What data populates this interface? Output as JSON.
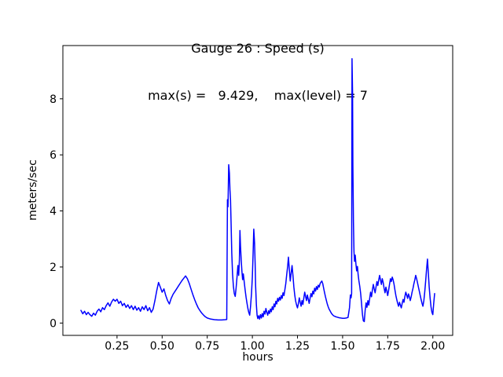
{
  "figure": {
    "background": "#ffffff",
    "frame_color": "#000000"
  },
  "chart_data": {
    "type": "line",
    "title": "Gauge 26 : Speed (s)",
    "subtitle": "max(s) =   9.429,    max(level) = 7",
    "xlabel": "hours",
    "ylabel": "meters/sec",
    "max_s": 9.429,
    "max_level": 7,
    "line_color": "#0000ff",
    "grid": false,
    "legend": "none",
    "xlim": [
      -0.05,
      2.11
    ],
    "ylim": [
      -0.44,
      9.9
    ],
    "xticks": [
      0.25,
      0.5,
      0.75,
      1.0,
      1.25,
      1.5,
      1.75,
      2.0
    ],
    "xtick_labels": [
      "0.25",
      "0.50",
      "0.75",
      "1.00",
      "1.25",
      "1.50",
      "1.75",
      "2.00"
    ],
    "yticks": [
      0,
      2,
      4,
      6,
      8
    ],
    "ytick_labels": [
      "0",
      "2",
      "4",
      "6",
      "8"
    ],
    "points": [
      [
        0.05,
        0.45
      ],
      [
        0.06,
        0.33
      ],
      [
        0.07,
        0.42
      ],
      [
        0.08,
        0.3
      ],
      [
        0.09,
        0.38
      ],
      [
        0.1,
        0.3
      ],
      [
        0.11,
        0.24
      ],
      [
        0.12,
        0.35
      ],
      [
        0.13,
        0.28
      ],
      [
        0.14,
        0.42
      ],
      [
        0.15,
        0.5
      ],
      [
        0.16,
        0.4
      ],
      [
        0.17,
        0.55
      ],
      [
        0.18,
        0.48
      ],
      [
        0.19,
        0.62
      ],
      [
        0.2,
        0.72
      ],
      [
        0.21,
        0.6
      ],
      [
        0.22,
        0.75
      ],
      [
        0.23,
        0.85
      ],
      [
        0.24,
        0.78
      ],
      [
        0.25,
        0.85
      ],
      [
        0.26,
        0.7
      ],
      [
        0.27,
        0.78
      ],
      [
        0.28,
        0.62
      ],
      [
        0.29,
        0.7
      ],
      [
        0.3,
        0.56
      ],
      [
        0.31,
        0.65
      ],
      [
        0.32,
        0.52
      ],
      [
        0.33,
        0.62
      ],
      [
        0.34,
        0.48
      ],
      [
        0.35,
        0.6
      ],
      [
        0.36,
        0.46
      ],
      [
        0.37,
        0.55
      ],
      [
        0.38,
        0.42
      ],
      [
        0.39,
        0.58
      ],
      [
        0.4,
        0.48
      ],
      [
        0.41,
        0.62
      ],
      [
        0.42,
        0.44
      ],
      [
        0.43,
        0.55
      ],
      [
        0.44,
        0.38
      ],
      [
        0.45,
        0.5
      ],
      [
        0.46,
        0.8
      ],
      [
        0.47,
        1.15
      ],
      [
        0.48,
        1.45
      ],
      [
        0.49,
        1.28
      ],
      [
        0.5,
        1.1
      ],
      [
        0.51,
        1.22
      ],
      [
        0.52,
        0.98
      ],
      [
        0.53,
        0.8
      ],
      [
        0.54,
        0.68
      ],
      [
        0.55,
        0.88
      ],
      [
        0.56,
        1.02
      ],
      [
        0.57,
        1.12
      ],
      [
        0.58,
        1.22
      ],
      [
        0.59,
        1.32
      ],
      [
        0.6,
        1.42
      ],
      [
        0.61,
        1.52
      ],
      [
        0.62,
        1.6
      ],
      [
        0.63,
        1.68
      ],
      [
        0.64,
        1.58
      ],
      [
        0.65,
        1.42
      ],
      [
        0.66,
        1.22
      ],
      [
        0.67,
        1.02
      ],
      [
        0.68,
        0.84
      ],
      [
        0.69,
        0.68
      ],
      [
        0.7,
        0.54
      ],
      [
        0.71,
        0.44
      ],
      [
        0.72,
        0.35
      ],
      [
        0.73,
        0.28
      ],
      [
        0.74,
        0.22
      ],
      [
        0.75,
        0.18
      ],
      [
        0.77,
        0.14
      ],
      [
        0.79,
        0.12
      ],
      [
        0.81,
        0.11
      ],
      [
        0.83,
        0.11
      ],
      [
        0.85,
        0.12
      ],
      [
        0.858,
        0.13
      ],
      [
        0.862,
        4.4
      ],
      [
        0.865,
        4.15
      ],
      [
        0.869,
        5.65
      ],
      [
        0.873,
        5.35
      ],
      [
        0.876,
        4.75
      ],
      [
        0.879,
        4.4
      ],
      [
        0.882,
        3.6
      ],
      [
        0.886,
        2.5
      ],
      [
        0.89,
        1.75
      ],
      [
        0.895,
        1.3
      ],
      [
        0.9,
        1.05
      ],
      [
        0.905,
        0.95
      ],
      [
        0.91,
        1.25
      ],
      [
        0.915,
        1.65
      ],
      [
        0.92,
        2.05
      ],
      [
        0.924,
        1.7
      ],
      [
        0.928,
        2.25
      ],
      [
        0.931,
        3.3
      ],
      [
        0.934,
        2.75
      ],
      [
        0.938,
        2.25
      ],
      [
        0.942,
        1.85
      ],
      [
        0.946,
        1.55
      ],
      [
        0.95,
        1.75
      ],
      [
        0.955,
        1.45
      ],
      [
        0.96,
        1.18
      ],
      [
        0.965,
        0.92
      ],
      [
        0.97,
        0.72
      ],
      [
        0.975,
        0.52
      ],
      [
        0.98,
        0.38
      ],
      [
        0.985,
        0.28
      ],
      [
        0.99,
        0.6
      ],
      [
        0.995,
        1.05
      ],
      [
        1.0,
        1.65
      ],
      [
        1.004,
        2.45
      ],
      [
        1.008,
        3.35
      ],
      [
        1.012,
        2.85
      ],
      [
        1.015,
        2.15
      ],
      [
        1.018,
        1.35
      ],
      [
        1.022,
        0.65
      ],
      [
        1.026,
        0.28
      ],
      [
        1.03,
        0.16
      ],
      [
        1.035,
        0.26
      ],
      [
        1.04,
        0.14
      ],
      [
        1.045,
        0.3
      ],
      [
        1.05,
        0.18
      ],
      [
        1.055,
        0.34
      ],
      [
        1.06,
        0.22
      ],
      [
        1.065,
        0.42
      ],
      [
        1.07,
        0.32
      ],
      [
        1.075,
        0.52
      ],
      [
        1.08,
        0.38
      ],
      [
        1.085,
        0.28
      ],
      [
        1.09,
        0.44
      ],
      [
        1.095,
        0.34
      ],
      [
        1.1,
        0.5
      ],
      [
        1.105,
        0.4
      ],
      [
        1.11,
        0.58
      ],
      [
        1.115,
        0.48
      ],
      [
        1.12,
        0.68
      ],
      [
        1.125,
        0.58
      ],
      [
        1.13,
        0.78
      ],
      [
        1.135,
        0.68
      ],
      [
        1.14,
        0.88
      ],
      [
        1.145,
        0.78
      ],
      [
        1.15,
        0.92
      ],
      [
        1.155,
        0.82
      ],
      [
        1.16,
        0.98
      ],
      [
        1.165,
        0.88
      ],
      [
        1.17,
        1.08
      ],
      [
        1.175,
        0.98
      ],
      [
        1.18,
        1.18
      ],
      [
        1.185,
        1.4
      ],
      [
        1.19,
        1.7
      ],
      [
        1.195,
        2.0
      ],
      [
        1.2,
        2.35
      ],
      [
        1.205,
        1.88
      ],
      [
        1.21,
        1.5
      ],
      [
        1.215,
        1.8
      ],
      [
        1.22,
        2.05
      ],
      [
        1.225,
        1.68
      ],
      [
        1.23,
        1.28
      ],
      [
        1.235,
        0.98
      ],
      [
        1.24,
        0.78
      ],
      [
        1.245,
        0.64
      ],
      [
        1.25,
        0.54
      ],
      [
        1.255,
        0.7
      ],
      [
        1.26,
        0.9
      ],
      [
        1.265,
        0.74
      ],
      [
        1.27,
        0.6
      ],
      [
        1.275,
        0.8
      ],
      [
        1.28,
        0.66
      ],
      [
        1.285,
        0.9
      ],
      [
        1.29,
        1.1
      ],
      [
        1.295,
        0.94
      ],
      [
        1.3,
        0.8
      ],
      [
        1.305,
        1.0
      ],
      [
        1.31,
        0.84
      ],
      [
        1.315,
        0.7
      ],
      [
        1.32,
        0.9
      ],
      [
        1.325,
        1.05
      ],
      [
        1.33,
        0.94
      ],
      [
        1.335,
        1.14
      ],
      [
        1.34,
        1.04
      ],
      [
        1.345,
        1.24
      ],
      [
        1.35,
        1.14
      ],
      [
        1.355,
        1.3
      ],
      [
        1.36,
        1.2
      ],
      [
        1.365,
        1.35
      ],
      [
        1.37,
        1.28
      ],
      [
        1.375,
        1.4
      ],
      [
        1.38,
        1.46
      ],
      [
        1.385,
        1.5
      ],
      [
        1.39,
        1.4
      ],
      [
        1.395,
        1.24
      ],
      [
        1.4,
        1.08
      ],
      [
        1.405,
        0.94
      ],
      [
        1.41,
        0.8
      ],
      [
        1.415,
        0.68
      ],
      [
        1.42,
        0.58
      ],
      [
        1.425,
        0.5
      ],
      [
        1.43,
        0.44
      ],
      [
        1.435,
        0.38
      ],
      [
        1.44,
        0.33
      ],
      [
        1.445,
        0.29
      ],
      [
        1.45,
        0.26
      ],
      [
        1.46,
        0.23
      ],
      [
        1.47,
        0.21
      ],
      [
        1.48,
        0.19
      ],
      [
        1.49,
        0.18
      ],
      [
        1.5,
        0.17
      ],
      [
        1.51,
        0.17
      ],
      [
        1.52,
        0.18
      ],
      [
        1.53,
        0.2
      ],
      [
        1.538,
        0.55
      ],
      [
        1.543,
        1.0
      ],
      [
        1.547,
        0.9
      ],
      [
        1.55,
        1.05
      ],
      [
        1.552,
        9.429
      ],
      [
        1.555,
        8.2
      ],
      [
        1.557,
        5.6
      ],
      [
        1.56,
        3.6
      ],
      [
        1.563,
        2.55
      ],
      [
        1.566,
        2.2
      ],
      [
        1.57,
        2.42
      ],
      [
        1.574,
        2.1
      ],
      [
        1.578,
        1.86
      ],
      [
        1.582,
        2.02
      ],
      [
        1.586,
        1.72
      ],
      [
        1.59,
        1.52
      ],
      [
        1.595,
        1.32
      ],
      [
        1.6,
        1.05
      ],
      [
        1.605,
        0.7
      ],
      [
        1.61,
        0.3
      ],
      [
        1.615,
        0.08
      ],
      [
        1.62,
        0.05
      ],
      [
        1.625,
        0.45
      ],
      [
        1.63,
        0.72
      ],
      [
        1.635,
        0.56
      ],
      [
        1.64,
        0.8
      ],
      [
        1.645,
        0.64
      ],
      [
        1.65,
        0.88
      ],
      [
        1.655,
        1.1
      ],
      [
        1.66,
        0.94
      ],
      [
        1.665,
        1.18
      ],
      [
        1.67,
        1.38
      ],
      [
        1.675,
        1.22
      ],
      [
        1.68,
        1.08
      ],
      [
        1.685,
        1.28
      ],
      [
        1.69,
        1.48
      ],
      [
        1.695,
        1.34
      ],
      [
        1.7,
        1.54
      ],
      [
        1.705,
        1.7
      ],
      [
        1.71,
        1.54
      ],
      [
        1.715,
        1.38
      ],
      [
        1.72,
        1.58
      ],
      [
        1.725,
        1.44
      ],
      [
        1.73,
        1.24
      ],
      [
        1.735,
        1.08
      ],
      [
        1.74,
        1.28
      ],
      [
        1.745,
        1.14
      ],
      [
        1.75,
        0.98
      ],
      [
        1.755,
        1.18
      ],
      [
        1.76,
        1.38
      ],
      [
        1.765,
        1.58
      ],
      [
        1.77,
        1.48
      ],
      [
        1.775,
        1.64
      ],
      [
        1.78,
        1.54
      ],
      [
        1.785,
        1.38
      ],
      [
        1.79,
        1.18
      ],
      [
        1.795,
        0.98
      ],
      [
        1.8,
        0.84
      ],
      [
        1.805,
        0.7
      ],
      [
        1.81,
        0.6
      ],
      [
        1.815,
        0.74
      ],
      [
        1.82,
        0.64
      ],
      [
        1.825,
        0.54
      ],
      [
        1.83,
        0.7
      ],
      [
        1.835,
        0.84
      ],
      [
        1.84,
        0.74
      ],
      [
        1.845,
        0.94
      ],
      [
        1.85,
        1.1
      ],
      [
        1.855,
        1.0
      ],
      [
        1.86,
        0.88
      ],
      [
        1.865,
        1.04
      ],
      [
        1.87,
        0.94
      ],
      [
        1.875,
        0.8
      ],
      [
        1.88,
        0.94
      ],
      [
        1.885,
        1.1
      ],
      [
        1.89,
        1.24
      ],
      [
        1.895,
        1.4
      ],
      [
        1.9,
        1.54
      ],
      [
        1.905,
        1.7
      ],
      [
        1.91,
        1.58
      ],
      [
        1.915,
        1.44
      ],
      [
        1.92,
        1.28
      ],
      [
        1.925,
        1.14
      ],
      [
        1.93,
        0.98
      ],
      [
        1.935,
        0.84
      ],
      [
        1.94,
        0.7
      ],
      [
        1.945,
        0.6
      ],
      [
        1.95,
        0.8
      ],
      [
        1.955,
        1.1
      ],
      [
        1.96,
        1.5
      ],
      [
        1.965,
        1.9
      ],
      [
        1.97,
        2.28
      ],
      [
        1.975,
        1.78
      ],
      [
        1.98,
        1.28
      ],
      [
        1.985,
        0.88
      ],
      [
        1.99,
        0.58
      ],
      [
        1.995,
        0.38
      ],
      [
        2.0,
        0.3
      ],
      [
        2.005,
        0.72
      ],
      [
        2.01,
        1.05
      ]
    ]
  }
}
